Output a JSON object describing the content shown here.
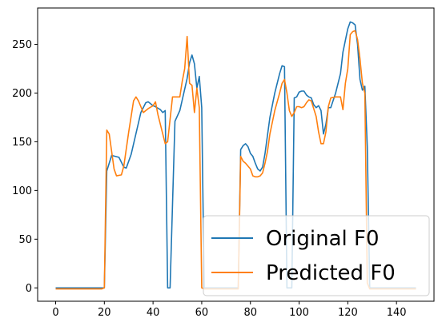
{
  "chart_data": {
    "type": "line",
    "title": "",
    "xlabel": "",
    "ylabel": "",
    "xlim": [
      -7.4,
      155.4
    ],
    "ylim": [
      -13.7,
      287.3
    ],
    "xticks": [
      0,
      20,
      40,
      60,
      80,
      100,
      120,
      140
    ],
    "yticks": [
      0,
      50,
      100,
      150,
      200,
      250
    ],
    "grid": false,
    "legend_position": "lower-right",
    "series": [
      {
        "name": "Original F0",
        "color": "#1f77b4",
        "x": [
          0,
          19,
          20,
          21,
          23,
          26,
          28,
          29,
          31,
          35,
          37,
          38,
          40,
          41,
          43,
          44,
          45,
          46,
          47,
          49,
          51,
          54,
          55,
          56,
          57,
          58,
          59,
          60,
          61,
          62,
          74,
          75,
          76,
          77,
          78,
          79,
          80,
          81,
          82,
          83,
          84,
          85,
          86,
          88,
          90,
          92,
          93,
          94,
          95,
          96,
          97,
          98,
          99,
          100,
          101,
          102,
          103,
          104,
          105,
          106,
          107,
          108,
          109,
          110,
          111,
          112,
          113,
          115,
          117,
          118,
          119,
          120,
          121,
          122,
          123,
          124,
          125,
          126,
          127,
          128,
          129,
          130,
          148
        ],
        "y": [
          0,
          0,
          0,
          120,
          136,
          134,
          124,
          123,
          137,
          180,
          190,
          191,
          187,
          186,
          183,
          180,
          182,
          0,
          0,
          171,
          182,
          215,
          231,
          239,
          230,
          205,
          217,
          185,
          0,
          0,
          0,
          0,
          142,
          146,
          148,
          145,
          138,
          135,
          128,
          122,
          120,
          124,
          138,
          175,
          200,
          220,
          228,
          227,
          0,
          0,
          0,
          195,
          196,
          201,
          202,
          202,
          198,
          196,
          195,
          188,
          185,
          187,
          182,
          158,
          168,
          185,
          185,
          200,
          220,
          242,
          254,
          266,
          273,
          272,
          270,
          250,
          214,
          203,
          207,
          145,
          0,
          0,
          0
        ]
      },
      {
        "name": "Predicted F0",
        "color": "#ff7f0e",
        "x": [
          0,
          19,
          20,
          21,
          22,
          24,
          25,
          27,
          28,
          30,
          32,
          33,
          34,
          36,
          38,
          40,
          41,
          42,
          44,
          45,
          46,
          48,
          51,
          52,
          53,
          54,
          55,
          56,
          57,
          58,
          59,
          60,
          61,
          62,
          74,
          75,
          76,
          77,
          78,
          79,
          80,
          81,
          82,
          83,
          84,
          85,
          86,
          87,
          88,
          90,
          92,
          93,
          94,
          95,
          96,
          97,
          98,
          99,
          100,
          101,
          102,
          103,
          104,
          105,
          106,
          107,
          108,
          109,
          110,
          111,
          112,
          113,
          115,
          117,
          118,
          119,
          120,
          121,
          122,
          123,
          124,
          125,
          126,
          127,
          128,
          129,
          130,
          148
        ],
        "y": [
          -1,
          -1,
          0,
          162,
          158,
          122,
          115,
          116,
          125,
          160,
          192,
          196,
          192,
          180,
          184,
          187,
          191,
          178,
          158,
          148,
          150,
          196,
          196,
          212,
          225,
          258,
          210,
          208,
          180,
          205,
          185,
          0,
          -1,
          -1,
          -1,
          -1,
          135,
          130,
          128,
          125,
          122,
          115,
          114,
          114,
          115,
          118,
          128,
          140,
          158,
          182,
          200,
          210,
          214,
          200,
          182,
          176,
          180,
          186,
          186,
          185,
          186,
          190,
          193,
          192,
          184,
          176,
          160,
          148,
          148,
          160,
          186,
          195,
          196,
          196,
          183,
          210,
          225,
          260,
          263,
          264,
          255,
          235,
          210,
          200,
          5,
          -1,
          -1,
          -1
        ]
      }
    ]
  }
}
